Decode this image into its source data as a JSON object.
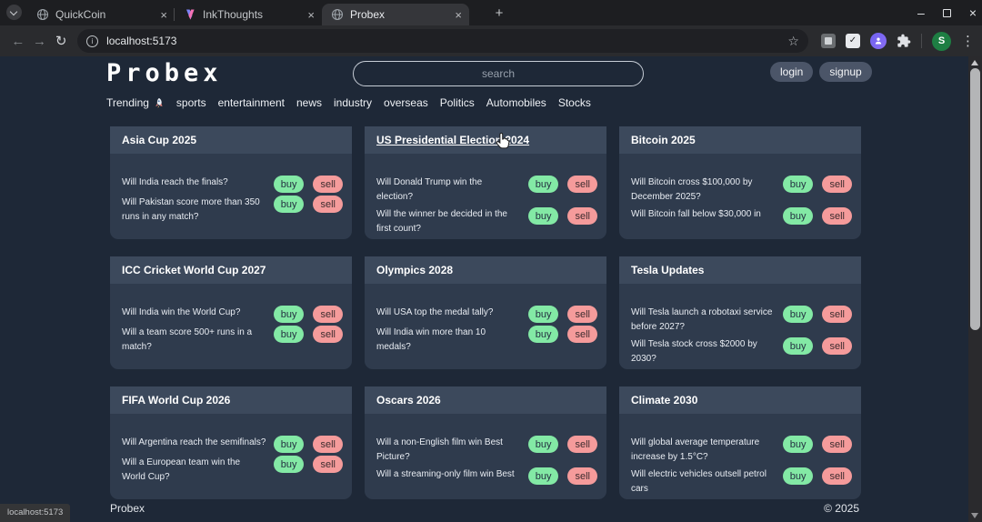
{
  "browser": {
    "tabs": [
      {
        "title": "QuickCoin",
        "icon": "globe",
        "active": false
      },
      {
        "title": "InkThoughts",
        "icon": "inkthoughts",
        "active": false
      },
      {
        "title": "Probex",
        "icon": "globe",
        "active": true
      }
    ],
    "url": "localhost:5173",
    "profile_initial": "S"
  },
  "icons": {
    "back": "←",
    "forward": "→",
    "reload": "↻",
    "info": "i",
    "star": "☆",
    "menu": "⋮",
    "minimize": "–",
    "close": "×",
    "tab_close": "×",
    "new_tab": "+",
    "ext_check": "✓"
  },
  "site": {
    "logo": "Probex",
    "search_placeholder": "search",
    "login_label": "login",
    "signup_label": "signup",
    "nav": [
      {
        "label": "Trending",
        "icon": "rocket"
      },
      {
        "label": "sports"
      },
      {
        "label": "entertainment"
      },
      {
        "label": "news"
      },
      {
        "label": "industry"
      },
      {
        "label": "overseas"
      },
      {
        "label": "Politics"
      },
      {
        "label": "Automobiles"
      },
      {
        "label": "Stocks"
      }
    ],
    "buy_label": "buy",
    "sell_label": "sell",
    "cards": [
      {
        "title": "Asia Cup 2025",
        "hovered": false,
        "questions": [
          "Will India reach the finals?",
          "Will Pakistan score more than 350 runs in any match?"
        ]
      },
      {
        "title": "US Presidential Election 2024",
        "hovered": true,
        "questions": [
          "Will Donald Trump win the election?",
          "Will the winner be decided in the first count?"
        ]
      },
      {
        "title": "Bitcoin 2025",
        "hovered": false,
        "questions": [
          "Will Bitcoin cross $100,000 by December 2025?",
          "Will Bitcoin fall below $30,000 in"
        ]
      },
      {
        "title": "ICC Cricket World Cup 2027",
        "hovered": false,
        "questions": [
          "Will India win the World Cup?",
          "Will a team score 500+ runs in a match?"
        ]
      },
      {
        "title": "Olympics 2028",
        "hovered": false,
        "questions": [
          "Will USA top the medal tally?",
          "Will India win more than 10 medals?"
        ]
      },
      {
        "title": "Tesla Updates",
        "hovered": false,
        "questions": [
          "Will Tesla launch a robotaxi service before 2027?",
          "Will Tesla stock cross $2000 by 2030?"
        ]
      },
      {
        "title": "FIFA World Cup 2026",
        "hovered": false,
        "questions": [
          "Will Argentina reach the semifinals?",
          "Will a European team win the World Cup?"
        ]
      },
      {
        "title": "Oscars 2026",
        "hovered": false,
        "questions": [
          "Will a non-English film win Best Picture?",
          "Will a streaming-only film win Best"
        ]
      },
      {
        "title": "Climate 2030",
        "hovered": false,
        "questions": [
          "Will global average temperature increase by 1.5°C?",
          "Will electric vehicles outsell petrol cars"
        ]
      }
    ],
    "footer": {
      "brand": "Probex",
      "copyright": "© 2025"
    },
    "status_bar": "localhost:5173"
  },
  "colors": {
    "page_bg": "#1e2837",
    "card_bg": "#2f3b4d",
    "card_header_bg": "#3c495c",
    "buy_bg": "#83e9a5",
    "sell_bg": "#f59b9b",
    "auth_pill_bg": "#4b5568",
    "avatar_bg": "#1e7e43"
  }
}
